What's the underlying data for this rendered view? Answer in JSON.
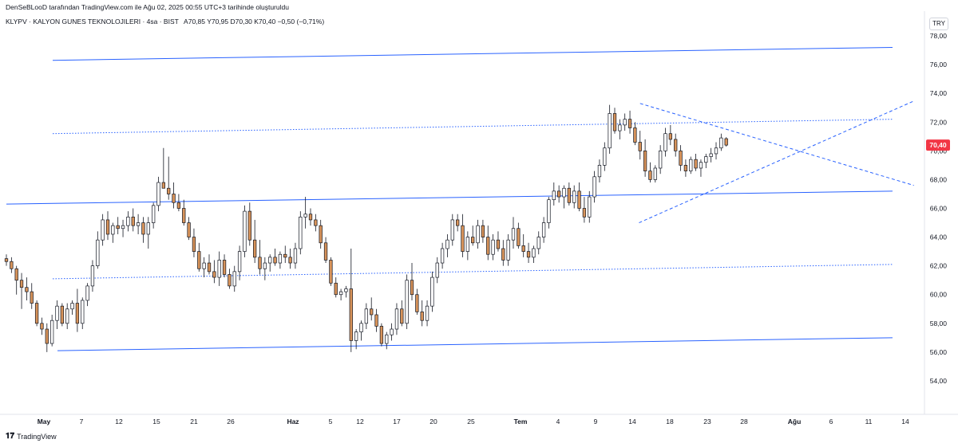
{
  "header": {
    "credit": "DenSeBLooD tarafından TradingView.com ile Ağu 02, 2025 00:55 UTC+3 tarihinde oluşturuldu",
    "symbol": "KLYPV · KALYON GUNES TEKNOLOJILERI · 4sa · BIST",
    "ohlc": "A70,85  Y70,95  D70,30  K70,40  −0,50 (−0,71%)",
    "currency": "TRY"
  },
  "footer": {
    "brand": "TradingView",
    "brand_icon": "tradingview-logo-icon"
  },
  "colors": {
    "up": "#ffffff",
    "down": "#d7935a",
    "outline": "#131722",
    "line": "#2962ff",
    "badge": "#f23645"
  },
  "chart_data": {
    "type": "candlestick",
    "y_axis": {
      "min": 53,
      "max": 79,
      "ticks": [
        "78,00",
        "76,00",
        "74,00",
        "72,00",
        "70,00",
        "68,00",
        "66,00",
        "64,00",
        "62,00",
        "60,00",
        "58,00",
        "56,00",
        "54,00"
      ]
    },
    "x_axis": {
      "ticks": [
        "May",
        "7",
        "12",
        "15",
        "21",
        "26",
        "Haz",
        "5",
        "12",
        "17",
        "20",
        "25",
        "Tem",
        "4",
        "9",
        "14",
        "18",
        "23",
        "28",
        "Ağu",
        "6",
        "11",
        "14"
      ]
    },
    "last_price_label": "70,40",
    "candles": [
      [
        62.5,
        62.8,
        62.0,
        62.3
      ],
      [
        62.3,
        62.6,
        61.5,
        61.8
      ],
      [
        61.8,
        62.0,
        60.0,
        61.0
      ],
      [
        61.0,
        61.5,
        59.0,
        60.5
      ],
      [
        60.5,
        61.2,
        59.6,
        60.2
      ],
      [
        60.2,
        60.8,
        59.0,
        59.4
      ],
      [
        59.4,
        59.6,
        57.8,
        58.0
      ],
      [
        58.0,
        58.4,
        57.2,
        57.6
      ],
      [
        57.6,
        58.0,
        56.0,
        56.6
      ],
      [
        56.6,
        58.6,
        56.4,
        58.2
      ],
      [
        58.2,
        59.6,
        57.6,
        59.2
      ],
      [
        59.2,
        59.4,
        57.8,
        58.0
      ],
      [
        58.0,
        59.4,
        57.6,
        59.0
      ],
      [
        59.0,
        59.6,
        58.6,
        59.4
      ],
      [
        59.4,
        60.4,
        57.4,
        58.0
      ],
      [
        58.0,
        59.8,
        57.6,
        59.6
      ],
      [
        59.6,
        60.8,
        59.2,
        60.6
      ],
      [
        60.6,
        62.4,
        60.2,
        62.0
      ],
      [
        62.0,
        64.4,
        61.8,
        63.8
      ],
      [
        63.8,
        65.6,
        63.4,
        65.2
      ],
      [
        65.2,
        65.8,
        63.8,
        64.2
      ],
      [
        64.2,
        65.0,
        63.6,
        64.8
      ],
      [
        64.8,
        65.4,
        64.2,
        64.6
      ],
      [
        64.6,
        65.2,
        64.0,
        64.8
      ],
      [
        64.8,
        65.8,
        64.4,
        65.4
      ],
      [
        65.4,
        66.0,
        64.4,
        64.8
      ],
      [
        64.8,
        65.6,
        64.2,
        65.0
      ],
      [
        65.0,
        65.4,
        63.6,
        64.2
      ],
      [
        64.2,
        65.4,
        63.2,
        65.0
      ],
      [
        65.0,
        66.4,
        64.6,
        66.2
      ],
      [
        66.2,
        68.2,
        65.8,
        67.8
      ],
      [
        67.8,
        70.2,
        67.4,
        67.4
      ],
      [
        67.4,
        69.6,
        66.6,
        67.0
      ],
      [
        67.0,
        67.8,
        66.0,
        66.4
      ],
      [
        66.4,
        67.0,
        65.8,
        66.0
      ],
      [
        66.0,
        66.6,
        64.8,
        65.0
      ],
      [
        65.0,
        65.4,
        63.8,
        64.0
      ],
      [
        64.0,
        64.6,
        62.6,
        63.0
      ],
      [
        63.0,
        63.6,
        61.6,
        61.8
      ],
      [
        61.8,
        62.6,
        61.2,
        62.2
      ],
      [
        62.2,
        62.8,
        61.4,
        61.6
      ],
      [
        61.6,
        62.4,
        60.8,
        61.2
      ],
      [
        61.2,
        63.0,
        60.6,
        62.4
      ],
      [
        62.4,
        62.8,
        61.2,
        61.4
      ],
      [
        61.4,
        61.8,
        60.4,
        60.6
      ],
      [
        60.6,
        62.0,
        60.2,
        61.6
      ],
      [
        61.6,
        63.4,
        61.0,
        63.0
      ],
      [
        63.0,
        66.2,
        62.6,
        65.8
      ],
      [
        65.8,
        66.4,
        63.4,
        63.8
      ],
      [
        63.8,
        65.2,
        62.2,
        62.6
      ],
      [
        62.6,
        63.8,
        61.4,
        61.8
      ],
      [
        61.8,
        62.6,
        61.0,
        62.2
      ],
      [
        62.2,
        62.8,
        61.6,
        62.6
      ],
      [
        62.6,
        63.2,
        62.0,
        62.2
      ],
      [
        62.2,
        63.0,
        61.8,
        62.8
      ],
      [
        62.8,
        63.4,
        62.2,
        62.6
      ],
      [
        62.6,
        63.2,
        61.8,
        62.2
      ],
      [
        62.2,
        63.6,
        61.8,
        63.2
      ],
      [
        63.2,
        65.8,
        62.8,
        65.4
      ],
      [
        65.4,
        66.8,
        64.6,
        65.6
      ],
      [
        65.6,
        66.0,
        64.8,
        65.2
      ],
      [
        65.2,
        65.6,
        64.4,
        64.8
      ],
      [
        64.8,
        65.2,
        63.2,
        63.6
      ],
      [
        63.6,
        64.0,
        62.2,
        62.4
      ],
      [
        62.4,
        62.6,
        60.6,
        60.8
      ],
      [
        60.8,
        61.2,
        59.8,
        60.0
      ],
      [
        60.0,
        60.4,
        59.6,
        60.2
      ],
      [
        60.2,
        60.6,
        59.8,
        60.4
      ],
      [
        60.4,
        63.2,
        56.0,
        56.8
      ],
      [
        56.8,
        57.6,
        56.2,
        57.4
      ],
      [
        57.4,
        58.2,
        56.8,
        58.0
      ],
      [
        58.0,
        59.4,
        57.6,
        59.0
      ],
      [
        59.0,
        59.8,
        58.2,
        58.6
      ],
      [
        58.6,
        59.0,
        57.4,
        57.8
      ],
      [
        57.8,
        58.0,
        56.4,
        56.6
      ],
      [
        56.6,
        57.4,
        56.2,
        57.2
      ],
      [
        57.2,
        58.0,
        56.8,
        57.6
      ],
      [
        57.6,
        59.4,
        57.2,
        59.0
      ],
      [
        59.0,
        59.6,
        57.8,
        58.0
      ],
      [
        58.0,
        61.4,
        57.6,
        61.0
      ],
      [
        61.0,
        62.2,
        59.6,
        60.0
      ],
      [
        60.0,
        60.4,
        58.6,
        58.8
      ],
      [
        58.8,
        59.6,
        57.8,
        58.2
      ],
      [
        58.2,
        59.6,
        57.8,
        59.2
      ],
      [
        59.2,
        61.6,
        58.8,
        61.2
      ],
      [
        61.2,
        62.6,
        60.8,
        62.2
      ],
      [
        62.2,
        63.6,
        61.8,
        63.2
      ],
      [
        63.2,
        64.2,
        62.6,
        63.8
      ],
      [
        63.8,
        65.6,
        63.4,
        65.2
      ],
      [
        65.2,
        65.6,
        64.4,
        64.8
      ],
      [
        64.8,
        65.6,
        62.6,
        63.0
      ],
      [
        63.0,
        64.4,
        62.4,
        64.0
      ],
      [
        64.0,
        64.8,
        63.4,
        63.6
      ],
      [
        63.6,
        65.2,
        63.2,
        64.8
      ],
      [
        64.8,
        65.2,
        63.6,
        64.0
      ],
      [
        64.0,
        64.8,
        62.4,
        62.8
      ],
      [
        62.8,
        64.2,
        62.4,
        63.8
      ],
      [
        63.8,
        64.4,
        63.0,
        63.2
      ],
      [
        63.2,
        63.8,
        62.0,
        62.4
      ],
      [
        62.4,
        64.2,
        62.0,
        63.8
      ],
      [
        63.8,
        65.4,
        63.2,
        64.6
      ],
      [
        64.6,
        65.0,
        63.2,
        63.4
      ],
      [
        63.4,
        64.2,
        62.6,
        63.0
      ],
      [
        63.0,
        63.6,
        62.2,
        62.6
      ],
      [
        62.6,
        63.4,
        62.2,
        63.2
      ],
      [
        63.2,
        64.4,
        62.8,
        64.0
      ],
      [
        64.0,
        65.4,
        63.6,
        65.0
      ],
      [
        65.0,
        66.8,
        64.6,
        66.6
      ],
      [
        66.6,
        67.8,
        66.2,
        67.2
      ],
      [
        67.2,
        67.6,
        66.4,
        66.8
      ],
      [
        66.8,
        67.6,
        66.0,
        67.4
      ],
      [
        67.4,
        67.8,
        66.2,
        66.4
      ],
      [
        66.4,
        67.6,
        66.0,
        67.2
      ],
      [
        67.2,
        67.8,
        65.8,
        66.0
      ],
      [
        66.0,
        66.8,
        65.0,
        65.4
      ],
      [
        65.4,
        67.2,
        65.0,
        66.8
      ],
      [
        66.8,
        68.6,
        66.4,
        68.2
      ],
      [
        68.2,
        69.4,
        67.8,
        69.0
      ],
      [
        69.0,
        70.6,
        68.6,
        70.2
      ],
      [
        70.2,
        73.2,
        69.8,
        72.6
      ],
      [
        72.6,
        73.0,
        71.2,
        71.4
      ],
      [
        71.4,
        72.2,
        70.8,
        71.8
      ],
      [
        71.8,
        72.6,
        71.4,
        72.2
      ],
      [
        72.2,
        72.8,
        71.2,
        71.6
      ],
      [
        71.6,
        72.0,
        70.4,
        70.6
      ],
      [
        70.6,
        71.4,
        69.4,
        70.0
      ],
      [
        70.0,
        70.8,
        68.2,
        68.6
      ],
      [
        68.6,
        69.2,
        67.8,
        68.0
      ],
      [
        68.0,
        69.0,
        67.8,
        68.8
      ],
      [
        68.8,
        70.4,
        68.4,
        70.0
      ],
      [
        70.0,
        71.6,
        69.6,
        71.2
      ],
      [
        71.2,
        71.8,
        70.4,
        70.8
      ],
      [
        70.8,
        71.2,
        69.6,
        70.0
      ],
      [
        70.0,
        70.4,
        68.6,
        69.0
      ],
      [
        69.0,
        69.4,
        68.2,
        68.6
      ],
      [
        68.6,
        69.6,
        68.4,
        69.4
      ],
      [
        69.4,
        69.8,
        68.6,
        68.8
      ],
      [
        68.8,
        69.4,
        68.2,
        69.2
      ],
      [
        69.2,
        69.8,
        68.8,
        69.6
      ],
      [
        69.6,
        70.2,
        69.2,
        69.8
      ],
      [
        69.8,
        70.6,
        69.4,
        70.2
      ],
      [
        70.2,
        71.2,
        70.0,
        70.9
      ],
      [
        70.85,
        70.95,
        70.3,
        70.4
      ]
    ],
    "trend_lines": [
      {
        "from": [
          0,
          76.3
        ],
        "to": [
          174.8,
          77.2
        ],
        "style": "solid"
      },
      {
        "from": [
          0,
          66.3
        ],
        "to": [
          174.8,
          67.2
        ],
        "style": "solid"
      },
      {
        "from": [
          0,
          56.1
        ],
        "to": [
          174.8,
          57.0
        ],
        "style": "solid"
      },
      {
        "from": [
          0,
          71.2
        ],
        "to": [
          174.8,
          72.2
        ],
        "style": "dotted"
      },
      {
        "from": [
          0,
          61.1
        ],
        "to": [
          174.8,
          62.1
        ],
        "style": "dotted"
      },
      {
        "from": [
          125.0,
          73.3
        ],
        "to": [
          179.0,
          67.6
        ],
        "style": "dashed"
      },
      {
        "from": [
          124.8,
          65.0
        ],
        "to": [
          179.2,
          73.5
        ],
        "style": "dashed"
      }
    ]
  }
}
